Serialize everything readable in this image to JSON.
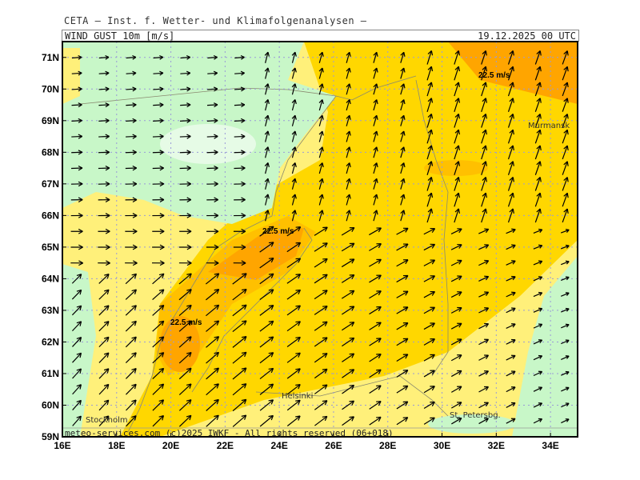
{
  "header": {
    "institute": "CETA – Inst. f. Wetter- und Klimafolgenanalysen –",
    "variable": "WIND_GUST_10m_[m/s]",
    "datetime": "19.12.2025 00 UTC"
  },
  "map": {
    "lat_labels": [
      "59N",
      "60N",
      "61N",
      "62N",
      "63N",
      "64N",
      "65N",
      "66N",
      "67N",
      "68N",
      "69N",
      "70N",
      "71N"
    ],
    "lon_labels": [
      "16E",
      "18E",
      "20E",
      "22E",
      "24E",
      "26E",
      "28E",
      "30E",
      "32E",
      "34E"
    ],
    "extent": {
      "lon": [
        16,
        35
      ],
      "lat": [
        59,
        71.5
      ]
    },
    "contour_labels": [
      "22.5 m/s",
      "22.5 m/s",
      "22.5 m/s"
    ],
    "cities": [
      "Murmansk",
      "Helsinki",
      "Stockholm",
      "St. Petersbg."
    ],
    "footer": "meteo-services.com  (c)2025 IWKF - All rights reserved (06+018)",
    "colors": {
      "calm_green": "#c8f7c8",
      "lightest": "#e6fbe6",
      "pale_yellow": "#fff07a",
      "gold": "#ffd700",
      "dark_gold": "#ffc000",
      "orange": "#ffa500"
    }
  }
}
